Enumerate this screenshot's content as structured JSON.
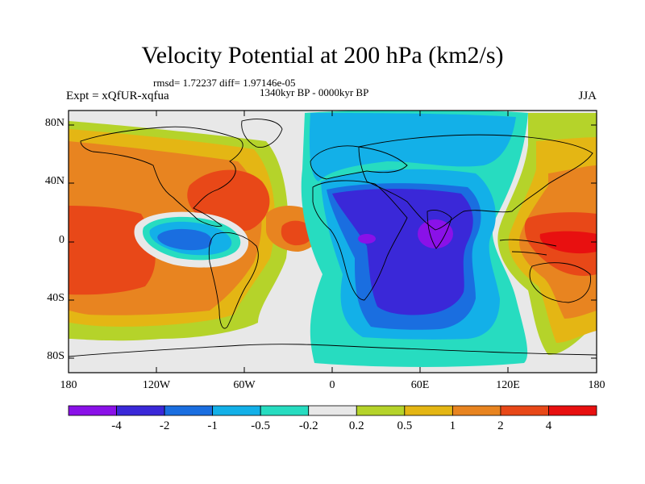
{
  "title": "Velocity Potential at 200 hPa (km2/s)",
  "stats_text": "rmsd= 1.72237 diff= 1.97146e-05",
  "period_text": "1340kyr BP - 0000kyr BP",
  "experiment_text": "Expt = xQfUR-xqfua",
  "season": "JJA",
  "map_extent": {
    "lon_min": -180,
    "lon_max": 180,
    "lat_min": -90,
    "lat_max": 90
  },
  "lat_ticks": [
    "80N",
    "40N",
    "0",
    "40S",
    "80S"
  ],
  "lon_ticks": [
    "180",
    "120W",
    "60W",
    "0",
    "60E",
    "120E",
    "180"
  ],
  "colorbar": {
    "levels": [
      "-4",
      "-2",
      "-1",
      "-0.5",
      "-0.2",
      "0.2",
      "0.5",
      "1",
      "2",
      "4"
    ],
    "colors": [
      "#8a11e8",
      "#3a28d8",
      "#1a6ee0",
      "#13b0e8",
      "#27dcc0",
      "#e8e8e8",
      "#b5d32a",
      "#e4b614",
      "#e88420",
      "#e84818",
      "#e81010"
    ]
  },
  "colors": {
    "land_outline": "#000000",
    "background": "#ffffff"
  }
}
